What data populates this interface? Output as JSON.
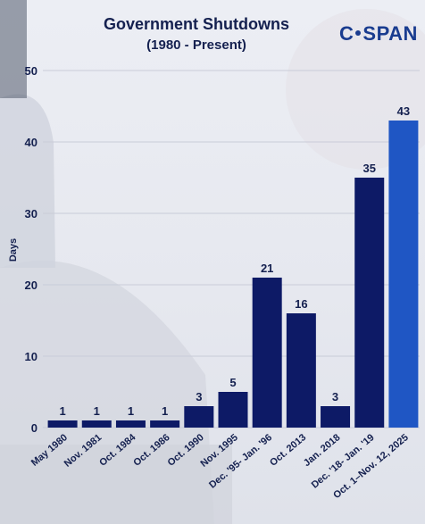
{
  "header": {
    "title": "Government Shutdowns",
    "subtitle": "(1980 - Present)",
    "logo_left": "C",
    "logo_right": "SPAN"
  },
  "colors": {
    "bar": "#0d1a66",
    "highlight_bar": "#1f56c4",
    "text": "#14204f",
    "grid": "#c9ccd8"
  },
  "chart_data": {
    "type": "bar",
    "title": "Government Shutdowns",
    "subtitle": "(1980 - Present)",
    "xlabel": "",
    "ylabel": "Days",
    "ylim": [
      0,
      50
    ],
    "yticks": [
      0,
      10,
      20,
      30,
      40,
      50
    ],
    "grid": true,
    "categories": [
      "May 1980",
      "Nov. 1981",
      "Oct. 1984",
      "Oct. 1986",
      "Oct. 1990",
      "Nov. 1995",
      "Dec. '95- Jan. '96",
      "Oct. 2013",
      "Jan. 2018",
      "Dec. '18- Jan. '19",
      "Oct. 1–Nov. 12, 2025"
    ],
    "values": [
      1,
      1,
      1,
      1,
      3,
      5,
      21,
      16,
      3,
      35,
      43
    ],
    "highlight_index": 10
  }
}
